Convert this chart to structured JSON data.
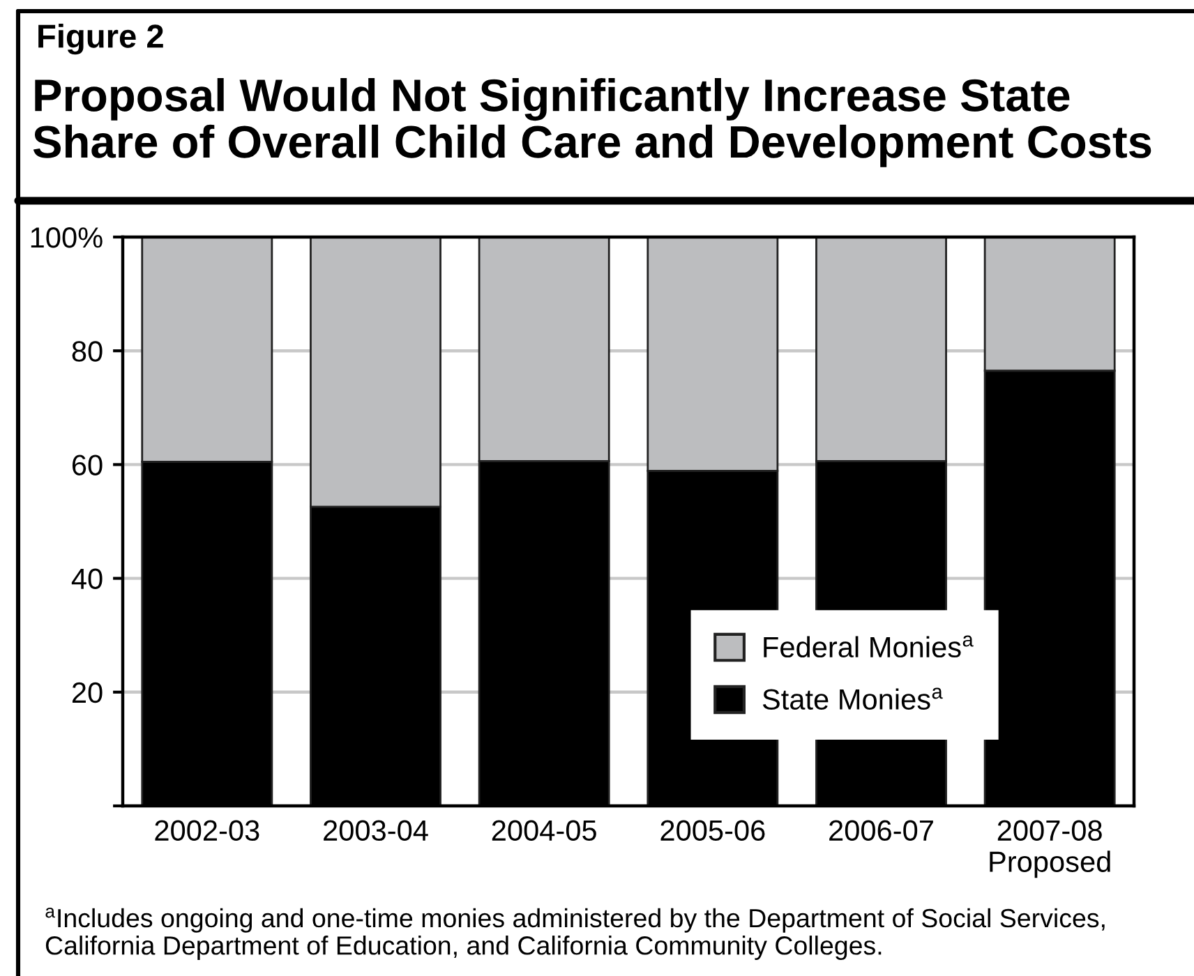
{
  "chart_data": {
    "type": "bar",
    "subtitle": "Figure 2",
    "title": "Proposal Would Not Significantly Increase State\nShare of Overall Child Care and Development Costs",
    "categories": [
      "2002-03",
      "2003-04",
      "2004-05",
      "2005-06",
      "2006-07",
      "2007-08\nProposed"
    ],
    "stacked": true,
    "series": [
      {
        "name": "State Monies$^{a}$",
        "color": "#000000",
        "values": [
          60.5,
          52.6,
          60.6,
          58.9,
          60.6,
          76.5
        ]
      },
      {
        "name": "Federal Monies$^{a}$",
        "color": "#bcbdbf",
        "values": [
          39.5,
          47.4,
          39.4,
          41.1,
          39.4,
          23.5
        ]
      }
    ],
    "ylim": [
      0,
      100
    ],
    "yticks": [
      {
        "value": 0,
        "label": null
      },
      20,
      40,
      60,
      80,
      {
        "value": 100,
        "label": "100%"
      }
    ],
    "grid": "y",
    "legend": "lower right",
    "annotations": [
      "$^{a}$Includes ongoing and one-time monies administered by the Department of Social Services,\nCalifornia Department of Education, and California Community Colleges."
    ]
  }
}
